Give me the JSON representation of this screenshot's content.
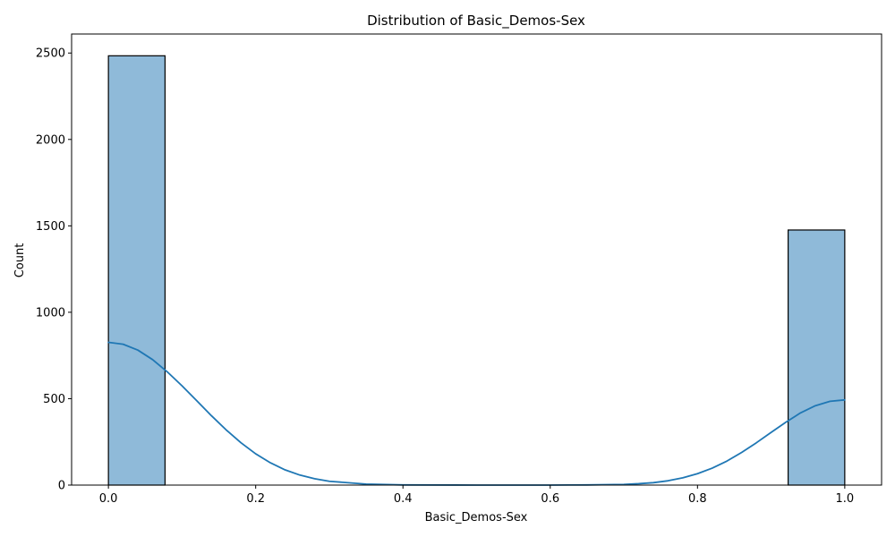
{
  "chart_data": {
    "type": "bar",
    "subtype": "histogram_with_kde",
    "title": "Distribution of Basic_Demos-Sex",
    "xlabel": "Basic_Demos-Sex",
    "ylabel": "Count",
    "xlim": [
      -0.05,
      1.05
    ],
    "ylim": [
      0,
      2610
    ],
    "x_ticks": [
      0.0,
      0.2,
      0.4,
      0.6,
      0.8,
      1.0
    ],
    "x_tick_labels": [
      "0.0",
      "0.2",
      "0.4",
      "0.6",
      "0.8",
      "1.0"
    ],
    "y_ticks": [
      0,
      500,
      1000,
      1500,
      2000,
      2500
    ],
    "y_tick_labels": [
      "0",
      "500",
      "1000",
      "1500",
      "2000",
      "2500"
    ],
    "grid": false,
    "legend": "none",
    "bins": [
      {
        "x0": 0.0,
        "x1": 0.0769,
        "count": 2484
      },
      {
        "x0": 0.9231,
        "x1": 1.0,
        "count": 1476
      }
    ],
    "kde": {
      "x": [
        0.0,
        0.02,
        0.04,
        0.06,
        0.08,
        0.1,
        0.12,
        0.14,
        0.16,
        0.18,
        0.2,
        0.22,
        0.24,
        0.26,
        0.28,
        0.3,
        0.35,
        0.4,
        0.5,
        0.6,
        0.65,
        0.7,
        0.72,
        0.74,
        0.76,
        0.78,
        0.8,
        0.82,
        0.84,
        0.86,
        0.88,
        0.9,
        0.92,
        0.94,
        0.96,
        0.98,
        1.0
      ],
      "y": [
        826,
        815,
        781,
        726,
        655,
        574,
        488,
        401,
        319,
        245,
        181,
        129,
        88,
        58,
        37,
        22,
        6,
        1,
        0,
        0,
        1,
        4,
        8,
        14,
        25,
        42,
        66,
        98,
        139,
        189,
        245,
        305,
        364,
        418,
        459,
        485,
        493
      ]
    },
    "colors": {
      "bar_fill": "#8fbad9",
      "bar_edge": "#000000",
      "kde_line": "#1f77b4"
    }
  }
}
